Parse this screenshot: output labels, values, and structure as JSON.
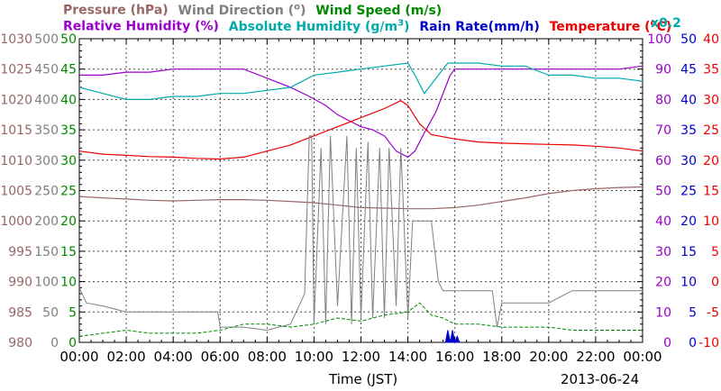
{
  "legend": {
    "pressure": "Pressure (hPa)",
    "wind_dir": "Wind Direction (",
    "wind_dir_end": ")",
    "wind_speed": "Wind Speed (m/s)",
    "rel_hum": "Relative Humidity (%)",
    "abs_hum": "Absolute Humidity (g/m",
    "abs_hum_sup": "3",
    "abs_hum_end": ")",
    "rain": "Rain Rate(mm/h)",
    "temp": "Temperature (",
    "temp_end": "C)",
    "degree": "o",
    "x02": "x0.2"
  },
  "xlabel": "Time (JST)",
  "date": "2013-06-24",
  "colors": {
    "pressure": "#996666",
    "wind_dir": "#808080",
    "wind_speed": "#008800",
    "rel_hum": "#9900cc",
    "abs_hum": "#00aaaa",
    "rain": "#0000cc",
    "temp": "#ee0000"
  },
  "chart_data": {
    "type": "line",
    "x_ticks": [
      "00:00",
      "02:00",
      "04:00",
      "06:00",
      "08:00",
      "10:00",
      "12:00",
      "14:00",
      "16:00",
      "18:00",
      "20:00",
      "22:00",
      "00:00"
    ],
    "axes": {
      "pressure": {
        "range": [
          980,
          1030
        ],
        "ticks": [
          "980",
          "985",
          "990",
          "995",
          "1000",
          "1005",
          "1010",
          "1015",
          "1020",
          "1025",
          "1030"
        ]
      },
      "wind_dir": {
        "range": [
          0,
          500
        ],
        "ticks": [
          "0",
          "50",
          "100",
          "150",
          "200",
          "250",
          "300",
          "350",
          "400",
          "450",
          "500"
        ]
      },
      "wind_speed": {
        "range": [
          0,
          50
        ],
        "ticks": [
          "0",
          "5",
          "10",
          "15",
          "20",
          "25",
          "30",
          "35",
          "40",
          "45",
          "50"
        ]
      },
      "rel_hum": {
        "range": [
          0,
          100
        ],
        "ticks": [
          "0",
          "10",
          "20",
          "30",
          "40",
          "50",
          "60",
          "70",
          "80",
          "90",
          "100"
        ]
      },
      "rain": {
        "range": [
          0,
          50
        ],
        "ticks": [
          "0",
          "5",
          "10",
          "15",
          "20",
          "25",
          "30",
          "35",
          "40",
          "45",
          "50"
        ]
      },
      "temp": {
        "range": [
          -10,
          40
        ],
        "ticks": [
          "-10",
          "-5",
          "0",
          "5",
          "10",
          "15",
          "20",
          "25",
          "30",
          "35",
          "40"
        ]
      }
    },
    "series": [
      {
        "name": "Pressure (hPa)",
        "axis": "pressure",
        "x": [
          0,
          1,
          2,
          3,
          4,
          5,
          6,
          7,
          8,
          9,
          10,
          11,
          12,
          13,
          14,
          15,
          16,
          17,
          18,
          19,
          20,
          21,
          22,
          23,
          24
        ],
        "y": [
          1004,
          1003.8,
          1003.6,
          1003.4,
          1003.3,
          1003.4,
          1003.5,
          1003.5,
          1003.4,
          1003.2,
          1003,
          1002.6,
          1002.2,
          1002.1,
          1002,
          1002,
          1002.2,
          1002.6,
          1003.2,
          1003.8,
          1004.5,
          1005,
          1005.3,
          1005.5,
          1005.6
        ]
      },
      {
        "name": "Relative Humidity (%)",
        "axis": "rel_hum",
        "x": [
          0,
          1,
          2,
          3,
          4,
          5,
          6,
          7,
          8,
          9,
          9.8,
          10.5,
          11,
          11.5,
          12,
          12.5,
          13,
          13.5,
          14,
          14.3,
          14.7,
          15.2,
          15.5,
          15.8,
          16,
          17,
          18,
          19,
          20,
          21,
          22,
          23,
          24
        ],
        "y": [
          88,
          88,
          89,
          89,
          90,
          90,
          90,
          90,
          87,
          84,
          81,
          78,
          75,
          73,
          71,
          70,
          68,
          63,
          61,
          63,
          69,
          76,
          82,
          88,
          90,
          90,
          90,
          90,
          90,
          90,
          90,
          90,
          91
        ]
      },
      {
        "name": "Absolute Humidity (g/m3) x0.2",
        "axis": "rel_hum",
        "x": [
          0,
          1,
          2,
          3,
          4,
          5,
          6,
          7,
          8,
          9,
          9.5,
          10,
          11,
          12,
          13,
          14,
          14.3,
          14.7,
          15.2,
          15.7,
          16,
          17,
          18,
          19,
          20,
          21,
          22,
          23,
          24
        ],
        "y": [
          84,
          82,
          80,
          80,
          81,
          81,
          82,
          82,
          83,
          84,
          86,
          88,
          89,
          90,
          91,
          92,
          88,
          82,
          87,
          92,
          92,
          92,
          91,
          91,
          88,
          88,
          87,
          87,
          86
        ]
      },
      {
        "name": "Temperature (oC)",
        "axis": "temp",
        "x": [
          0,
          1,
          2,
          3,
          4,
          5,
          6,
          7,
          8,
          9,
          10,
          11,
          12,
          13,
          13.7,
          14,
          14.5,
          15,
          16,
          17,
          18,
          19,
          20,
          21,
          22,
          23,
          24
        ],
        "y": [
          21.5,
          21,
          20.8,
          20.6,
          20.5,
          20.3,
          20.2,
          20.5,
          21.5,
          22.5,
          24,
          25.5,
          27,
          28.5,
          29.8,
          29,
          26,
          24.2,
          23.5,
          23,
          22.8,
          22.7,
          22.6,
          22.5,
          22.3,
          22,
          21.5
        ]
      },
      {
        "name": "Wind Direction (o)",
        "axis": "wind_dir",
        "x": [
          0,
          0.3,
          1,
          2,
          3,
          4,
          5,
          5.9,
          6,
          7,
          8,
          9,
          9.6,
          9.8,
          9.9,
          10,
          10.3,
          10.5,
          10.7,
          11,
          11.4,
          11.6,
          11.8,
          12,
          12.3,
          12.5,
          12.8,
          13,
          13.2,
          13.5,
          13.7,
          14,
          14.2,
          14.5,
          15,
          15.3,
          15.5,
          16,
          17,
          17.6,
          17.8,
          18,
          19,
          20,
          21,
          22,
          23,
          24
        ],
        "y": [
          90,
          65,
          60,
          50,
          50,
          50,
          50,
          50,
          25,
          25,
          20,
          30,
          80,
          340,
          340,
          30,
          320,
          30,
          340,
          60,
          340,
          30,
          320,
          40,
          330,
          40,
          320,
          40,
          320,
          60,
          320,
          40,
          200,
          200,
          200,
          100,
          85,
          85,
          85,
          85,
          25,
          65,
          65,
          65,
          85,
          85,
          85,
          85
        ]
      },
      {
        "name": "Wind Speed (m/s)",
        "axis": "wind_speed",
        "x": [
          0,
          1,
          2,
          3,
          4,
          5,
          6,
          7,
          8,
          9,
          10,
          11,
          12,
          13,
          14,
          14.5,
          15,
          15.5,
          16,
          17,
          18,
          19,
          20,
          21,
          22,
          23,
          24
        ],
        "y": [
          1,
          1.5,
          2,
          1.5,
          1.5,
          1.5,
          2,
          3,
          3,
          2.5,
          3,
          4,
          3.5,
          4.5,
          5,
          6.5,
          4.5,
          4,
          3,
          3,
          2.5,
          2.5,
          2.5,
          2,
          2,
          2,
          2
        ]
      },
      {
        "name": "Rain Rate(mm/h)",
        "axis": "rain",
        "x": [
          15.6,
          15.7,
          15.8,
          15.9,
          16.0,
          16.1,
          16.2
        ],
        "y": [
          0,
          2,
          0,
          2,
          0,
          1,
          0
        ]
      }
    ]
  }
}
